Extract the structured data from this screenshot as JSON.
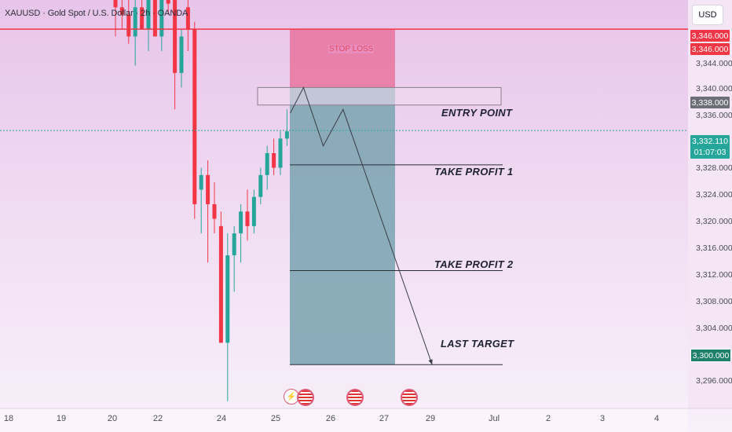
{
  "header": {
    "symbol_line": "XAUUSD · Gold Spot / U.S. Dollar · 2h · OANDA",
    "currency_button": "USD"
  },
  "price_axis": {
    "ticks": [
      "3,344.000",
      "3,340.000",
      "3,336.000",
      "3,328.000",
      "3,324.000",
      "3,320.000",
      "3,316.000",
      "3,312.000",
      "3,308.000",
      "3,304.000",
      "3,296.000"
    ],
    "badges": {
      "stop_high": "3,346.000",
      "stop_low": "3,346.000",
      "entry": "3,338.000",
      "current_price": "3,332.110",
      "countdown": "01:07:03",
      "target": "3,300.000"
    }
  },
  "time_axis": {
    "labels": [
      "18",
      "19",
      "20",
      "22",
      "24",
      "25",
      "26",
      "27",
      "29",
      "Jul",
      "2",
      "3",
      "4"
    ]
  },
  "annotations": {
    "stop_loss": "STOP LOSS",
    "entry_point": "ENTRY POINT",
    "take_profit_1": "TAKE PROFIT 1",
    "take_profit_2": "TAKE PROFIT 2",
    "last_target": "LAST TARGET"
  },
  "colors": {
    "bull": "#26a69a",
    "bear": "#f23645",
    "stop_line": "#f23645",
    "stop_zone": "#e9739f",
    "target_zone": "#7fa6b4",
    "current_line": "#26a69a",
    "background_top": "#e8c4ea",
    "background_bottom": "#f8f0fa"
  },
  "events": [
    "lightning-icon",
    "us-flag-icon",
    "us-flag-icon",
    "us-flag-icon"
  ],
  "chart_data": {
    "type": "candlestick",
    "symbol": "XAUUSD",
    "timeframe": "2h",
    "y_range": [
      3294,
      3350
    ],
    "x_labels": [
      "18",
      "19",
      "20",
      "22",
      "24",
      "25",
      "26",
      "27",
      "29",
      "Jul",
      "2",
      "3",
      "4"
    ],
    "levels": {
      "stop_loss": 3346.0,
      "entry_zone": [
        3335.6,
        3338.0
      ],
      "take_profit_1": 3327.4,
      "take_profit_2": 3312.9,
      "last_target": 3300.0,
      "current_price": 3332.11
    },
    "candles": [
      {
        "o": 3350.0,
        "h": 3352.0,
        "l": 3345.0,
        "c": 3349.0
      },
      {
        "o": 3349.0,
        "h": 3352.0,
        "l": 3346.0,
        "c": 3348.0
      },
      {
        "o": 3348.0,
        "h": 3351.0,
        "l": 3344.0,
        "c": 3345.0
      },
      {
        "o": 3345.0,
        "h": 3350.0,
        "l": 3341.0,
        "c": 3349.0
      },
      {
        "o": 3349.0,
        "h": 3352.0,
        "l": 3346.0,
        "c": 3346.0
      },
      {
        "o": 3346.0,
        "h": 3352.0,
        "l": 3343.0,
        "c": 3352.0
      },
      {
        "o": 3352.0,
        "h": 3352.0,
        "l": 3345.0,
        "c": 3345.0
      },
      {
        "o": 3345.0,
        "h": 3352.0,
        "l": 3343.0,
        "c": 3351.0
      },
      {
        "o": 3350.0,
        "h": 3352.0,
        "l": 3348.0,
        "c": 3349.5
      },
      {
        "o": 3350.0,
        "h": 3352.0,
        "l": 3335.0,
        "c": 3340.0
      },
      {
        "o": 3340.0,
        "h": 3346.0,
        "l": 3338.0,
        "c": 3345.0
      },
      {
        "o": 3349.0,
        "h": 3352.0,
        "l": 3343.0,
        "c": 3346.0
      },
      {
        "o": 3346.0,
        "h": 3347.0,
        "l": 3320.0,
        "c": 3322.0
      },
      {
        "o": 3324.0,
        "h": 3327.0,
        "l": 3318.0,
        "c": 3326.0
      },
      {
        "o": 3326.0,
        "h": 3328.0,
        "l": 3314.0,
        "c": 3322.0
      },
      {
        "o": 3322.0,
        "h": 3325.0,
        "l": 3318.0,
        "c": 3320.0
      },
      {
        "o": 3319.0,
        "h": 3321.0,
        "l": 3303.0,
        "c": 3303.0
      },
      {
        "o": 3303.0,
        "h": 3318.0,
        "l": 3295.0,
        "c": 3315.0
      },
      {
        "o": 3315.0,
        "h": 3319.0,
        "l": 3310.0,
        "c": 3318.0
      },
      {
        "o": 3318.0,
        "h": 3322.0,
        "l": 3314.0,
        "c": 3321.0
      },
      {
        "o": 3321.0,
        "h": 3324.0,
        "l": 3317.0,
        "c": 3319.0
      },
      {
        "o": 3319.0,
        "h": 3324.0,
        "l": 3318.0,
        "c": 3323.0
      },
      {
        "o": 3323.0,
        "h": 3327.0,
        "l": 3322.0,
        "c": 3326.0
      },
      {
        "o": 3326.0,
        "h": 3330.0,
        "l": 3324.0,
        "c": 3329.0
      },
      {
        "o": 3329.0,
        "h": 3331.0,
        "l": 3326.0,
        "c": 3327.0
      },
      {
        "o": 3327.0,
        "h": 3332.0,
        "l": 3326.0,
        "c": 3331.0
      },
      {
        "o": 3331.0,
        "h": 3335.0,
        "l": 3330.0,
        "c": 3332.0
      }
    ],
    "projection_path": [
      {
        "bar": 26.5,
        "price": 3334.5
      },
      {
        "bar": 28.5,
        "price": 3338.0
      },
      {
        "bar": 31.5,
        "price": 3330.0
      },
      {
        "bar": 34.5,
        "price": 3335.0
      },
      {
        "bar": 48.0,
        "price": 3300.0
      }
    ]
  }
}
